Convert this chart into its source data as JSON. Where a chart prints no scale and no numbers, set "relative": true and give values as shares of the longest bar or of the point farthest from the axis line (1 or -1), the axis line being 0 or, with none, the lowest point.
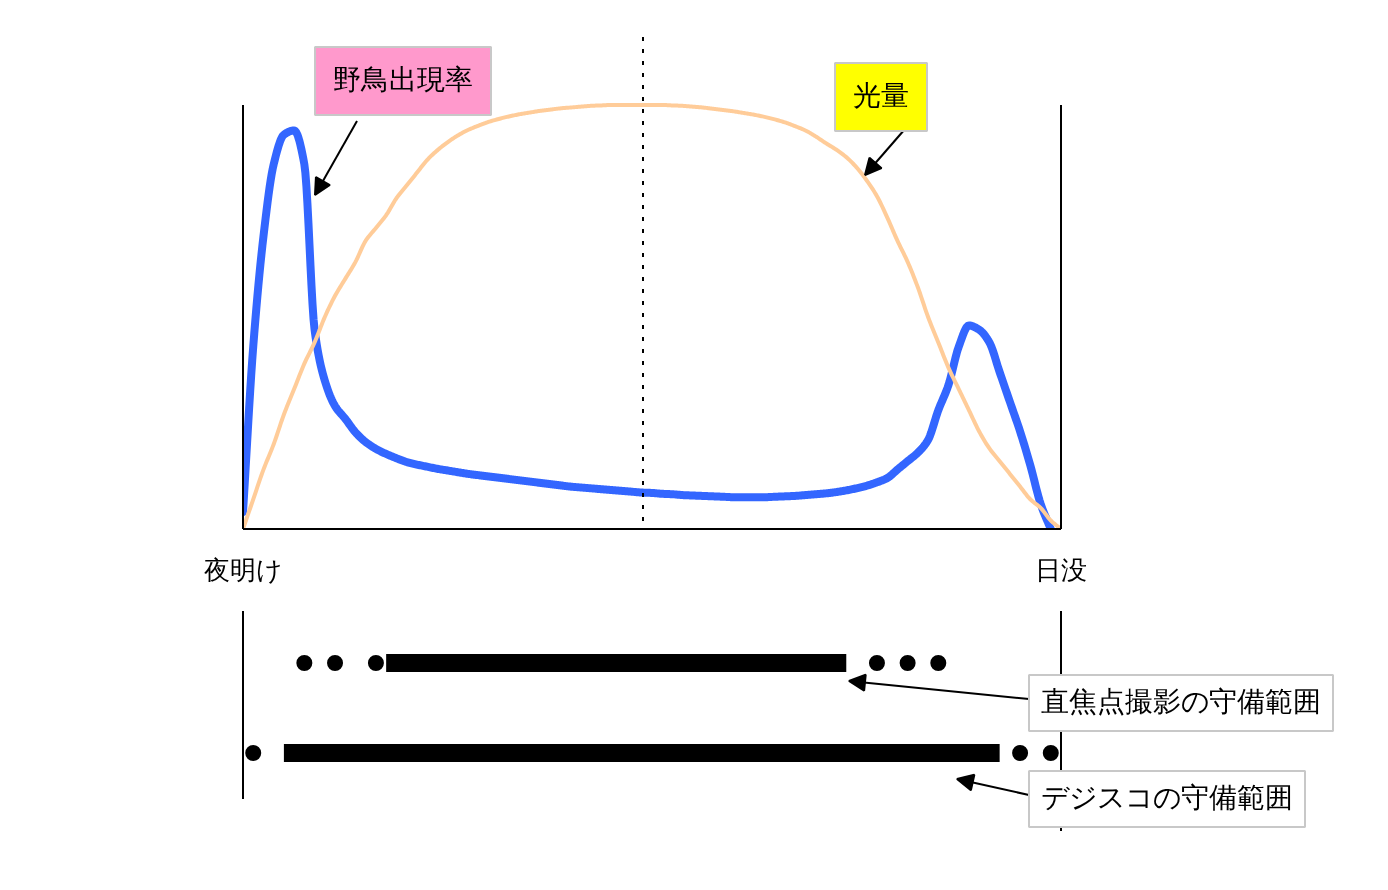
{
  "chart_data": [
    {
      "type": "line",
      "relative": true,
      "categories": [
        "夜明け",
        null,
        null,
        null,
        null,
        null,
        null,
        null,
        null,
        null,
        null,
        null,
        null,
        null,
        null,
        null,
        null,
        null,
        null,
        null,
        null,
        null,
        null,
        null,
        null,
        null,
        null,
        null,
        null,
        null,
        null,
        null,
        null,
        null,
        null,
        null,
        null,
        null,
        null,
        null,
        null,
        null,
        null,
        null,
        null,
        null,
        null,
        null,
        null,
        null,
        null,
        null,
        null,
        null,
        null,
        null,
        null,
        null,
        null,
        null,
        null,
        null,
        null,
        null,
        null,
        null,
        null,
        null,
        null,
        null,
        null,
        null,
        null,
        null,
        null,
        null,
        null,
        null,
        null,
        null,
        "日没"
      ],
      "series": [
        {
          "name": "野鳥出現率",
          "color": "#3366ff",
          "values": [
            0.04,
            0.43,
            0.69,
            0.86,
            0.93,
            0.94,
            0.86,
            0.47,
            0.35,
            0.29,
            0.26,
            0.228,
            0.205,
            0.189,
            0.177,
            0.167,
            0.158,
            0.152,
            0.147,
            0.142,
            0.138,
            0.134,
            0.13,
            0.127,
            0.124,
            0.121,
            0.118,
            0.115,
            0.112,
            0.109,
            0.106,
            0.103,
            0.1,
            0.098,
            0.096,
            0.094,
            0.092,
            0.09,
            0.088,
            0.086,
            0.085,
            0.083,
            0.082,
            0.08,
            0.079,
            0.078,
            0.077,
            0.076,
            0.075,
            0.075,
            0.075,
            0.075,
            0.076,
            0.077,
            0.078,
            0.08,
            0.082,
            0.084,
            0.087,
            0.091,
            0.096,
            0.102,
            0.11,
            0.12,
            0.14,
            0.16,
            0.18,
            0.21,
            0.28,
            0.34,
            0.43,
            0.48,
            0.47,
            0.44,
            0.37,
            0.3,
            0.23,
            0.15,
            0.06,
            0,
            null
          ]
        },
        {
          "name": "光量",
          "color": "#ffcc99",
          "values": [
            0,
            0.07,
            0.14,
            0.2,
            0.27,
            0.33,
            0.39,
            0.44,
            0.5,
            0.55,
            0.59,
            0.63,
            0.68,
            0.71,
            0.74,
            0.78,
            0.81,
            0.84,
            0.87,
            0.893,
            0.912,
            0.928,
            0.941,
            0.951,
            0.96,
            0.967,
            0.973,
            0.978,
            0.982,
            0.986,
            0.989,
            0.992,
            0.994,
            0.996,
            0.998,
            0.999,
            1,
            1,
            1,
            1,
            1,
            1,
            0.999,
            0.998,
            0.996,
            0.994,
            0.991,
            0.988,
            0.985,
            0.981,
            0.977,
            0.972,
            0.966,
            0.959,
            0.95,
            0.94,
            0.926,
            0.91,
            0.895,
            0.877,
            0.853,
            0.822,
            0.785,
            0.735,
            0.68,
            0.63,
            0.57,
            0.5,
            0.44,
            0.38,
            0.33,
            0.28,
            0.23,
            0.19,
            0.16,
            0.13,
            0.1,
            0.07,
            0.05,
            0.02,
            0
          ]
        }
      ]
    },
    {
      "type": "line",
      "relative": true,
      "tick_labels": false,
      "categories": [
        "夜明け",
        null,
        null,
        null,
        null,
        null,
        null,
        null,
        null,
        null,
        null,
        null,
        null,
        null,
        null,
        null,
        null,
        null,
        null,
        null,
        null,
        null,
        null,
        null,
        null,
        null,
        null,
        null,
        null,
        null,
        null,
        null,
        null,
        null,
        null,
        null,
        null,
        null,
        null,
        null,
        null,
        null,
        null,
        null,
        null,
        null,
        null,
        null,
        null,
        null,
        null,
        null,
        null,
        null,
        null,
        null,
        null,
        null,
        null,
        null,
        null,
        null,
        null,
        null,
        null,
        null,
        null,
        null,
        null,
        null,
        null,
        null,
        null,
        null,
        null,
        null,
        null,
        null,
        null,
        null,
        "日没"
      ],
      "ref_lines": [
        {
          "axis": "x",
          "value": "日没",
          "color": "#000000"
        }
      ],
      "series": [
        {
          "name": "直焦点撮影の守備範囲",
          "color": "#000000",
          "values": [
            null,
            null,
            null,
            null,
            null,
            null,
            null,
            null,
            null,
            null,
            null,
            null,
            null,
            null,
            1,
            1,
            1,
            1,
            1,
            1,
            1,
            1,
            1,
            1,
            1,
            1,
            1,
            1,
            1,
            1,
            1,
            1,
            1,
            1,
            1,
            1,
            1,
            1,
            1,
            1,
            1,
            1,
            1,
            1,
            1,
            1,
            1,
            1,
            1,
            1,
            1,
            1,
            1,
            1,
            1,
            1,
            1,
            1,
            1,
            1,
            null,
            null,
            null,
            null,
            null,
            null,
            null,
            null,
            null,
            null,
            null,
            null,
            null,
            null,
            null,
            null,
            null,
            null,
            null,
            null,
            null
          ]
        },
        {
          "name": "デジスコの守備範囲",
          "color": "#000000",
          "values": [
            null,
            null,
            null,
            null,
            0,
            0,
            0,
            0,
            0,
            0,
            0,
            0,
            0,
            0,
            0,
            0,
            0,
            0,
            0,
            0,
            0,
            0,
            0,
            0,
            0,
            0,
            0,
            0,
            0,
            0,
            0,
            0,
            0,
            0,
            0,
            0,
            0,
            0,
            0,
            0,
            0,
            0,
            0,
            0,
            0,
            0,
            0,
            0,
            0,
            0,
            0,
            0,
            0,
            0,
            0,
            0,
            0,
            0,
            0,
            0,
            0,
            0,
            0,
            0,
            0,
            0,
            0,
            0,
            0,
            0,
            0,
            0,
            0,
            0,
            0,
            null,
            null,
            null,
            null,
            null,
            null
          ]
        },
        {
          "type": "scatter",
          "marker": "circle",
          "color": "#000000",
          "values": [
            null,
            0,
            null,
            null,
            null,
            null,
            1,
            null,
            null,
            1,
            null,
            null,
            null,
            1,
            null,
            null,
            null,
            null,
            null,
            null,
            null,
            null,
            null,
            null,
            null,
            null,
            null,
            null,
            null,
            null,
            null,
            null,
            null,
            null,
            null,
            null,
            null,
            null,
            null,
            null,
            null,
            null,
            null,
            null,
            null,
            null,
            null,
            null,
            null,
            null,
            null,
            null,
            null,
            null,
            null,
            null,
            null,
            null,
            null,
            null,
            null,
            null,
            1,
            null,
            null,
            1,
            null,
            null,
            1,
            null,
            null,
            null,
            null,
            null,
            null,
            null,
            0,
            null,
            null,
            0,
            null
          ]
        }
      ]
    }
  ]
}
